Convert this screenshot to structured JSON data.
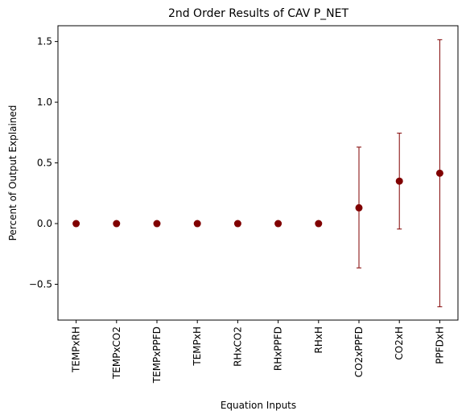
{
  "chart_data": {
    "type": "scatter",
    "title": "2nd Order Results of CAV P_NET",
    "xlabel": "Equation Inputs",
    "ylabel": "Percent of Output Explained",
    "categories": [
      "TEMPxRH",
      "TEMPxCO2",
      "TEMPxPPFD",
      "TEMPxH",
      "RHxCO2",
      "RHxPPFD",
      "RHxH",
      "CO2xPPFD",
      "CO2xH",
      "PPFDxH"
    ],
    "values": [
      0.0,
      0.0,
      0.0,
      0.0,
      0.0,
      0.0,
      0.0,
      0.13,
      0.35,
      0.415
    ],
    "error_low": [
      0.0,
      0.0,
      0.0,
      0.0,
      0.0,
      0.0,
      0.0,
      -0.365,
      -0.045,
      -0.685
    ],
    "error_high": [
      0.0,
      0.0,
      0.0,
      0.0,
      0.0,
      0.0,
      0.0,
      0.63,
      0.745,
      1.515
    ],
    "ylim": [
      -0.795,
      1.63
    ],
    "yticks": [
      -0.5,
      0.0,
      0.5,
      1.0,
      1.5
    ],
    "ytick_labels": [
      "−0.5",
      "0.0",
      "0.5",
      "1.0",
      "1.5"
    ],
    "grid": false,
    "marker_color": "#800000",
    "errorbar_color": "#800000"
  }
}
